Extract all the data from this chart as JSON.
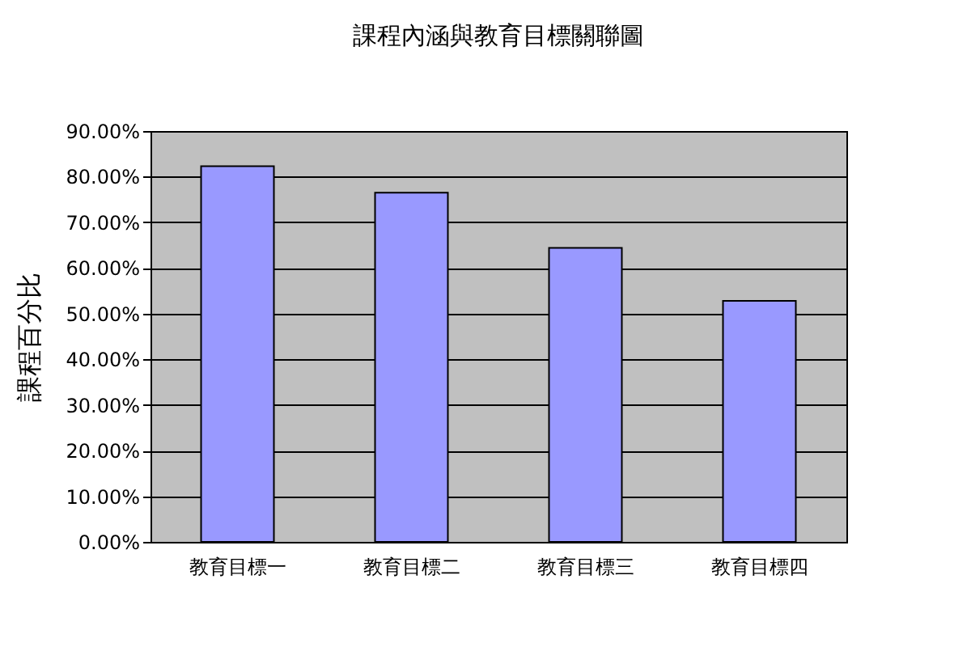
{
  "chart_data": {
    "type": "bar",
    "title": "課程內涵與教育目標關聯圖",
    "ylabel": "課程百分比",
    "categories": [
      "教育目標一",
      "教育目標二",
      "教育目標三",
      "教育目標四"
    ],
    "values": [
      82.3,
      76.5,
      64.4,
      52.8
    ],
    "color": "#9999ff",
    "ylim": [
      0,
      90
    ],
    "yticks": [
      {
        "value": 0,
        "label": "0.00%"
      },
      {
        "value": 10,
        "label": "10.00%"
      },
      {
        "value": 20,
        "label": "20.00%"
      },
      {
        "value": 30,
        "label": "30.00%"
      },
      {
        "value": 40,
        "label": "40.00%"
      },
      {
        "value": 50,
        "label": "50.00%"
      },
      {
        "value": 60,
        "label": "60.00%"
      },
      {
        "value": 70,
        "label": "70.00%"
      },
      {
        "value": 80,
        "label": "80.00%"
      },
      {
        "value": 90,
        "label": "90.00%"
      }
    ],
    "grid": "y"
  }
}
